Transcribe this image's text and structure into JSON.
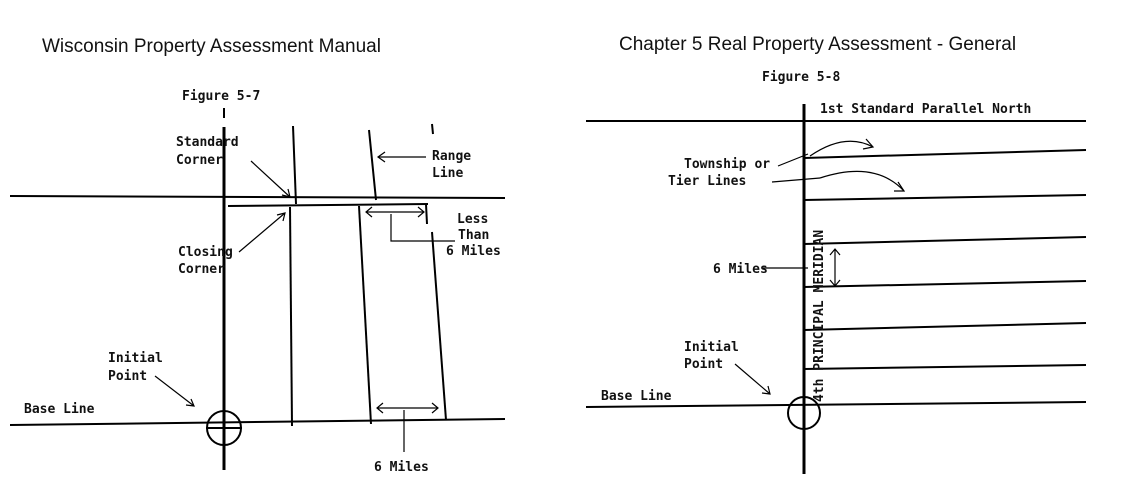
{
  "header": {
    "left_title": "Wisconsin Property Assessment Manual",
    "right_title": "Chapter 5 Real Property Assessment - General"
  },
  "figure_5_7": {
    "title": "Figure 5-7",
    "standard_corner": [
      "Standard",
      "Corner"
    ],
    "range_line": [
      "Range",
      "Line"
    ],
    "less_than": [
      "Less",
      "Than",
      "6 Miles"
    ],
    "closing_corner": [
      "Closing",
      "Corner"
    ],
    "initial_point": [
      "Initial",
      "Point"
    ],
    "base_line": "Base Line",
    "six_miles": "6 Miles"
  },
  "figure_5_8": {
    "title": "Figure 5-8",
    "standard_parallel": "1st Standard Parallel North",
    "township_lines": [
      "Township or",
      "Tier Lines"
    ],
    "six_miles": "6 Miles",
    "initial_point": [
      "Initial",
      "Point"
    ],
    "base_line": "Base Line",
    "meridian": "4th PRINCIPAL MERIDIAN"
  }
}
